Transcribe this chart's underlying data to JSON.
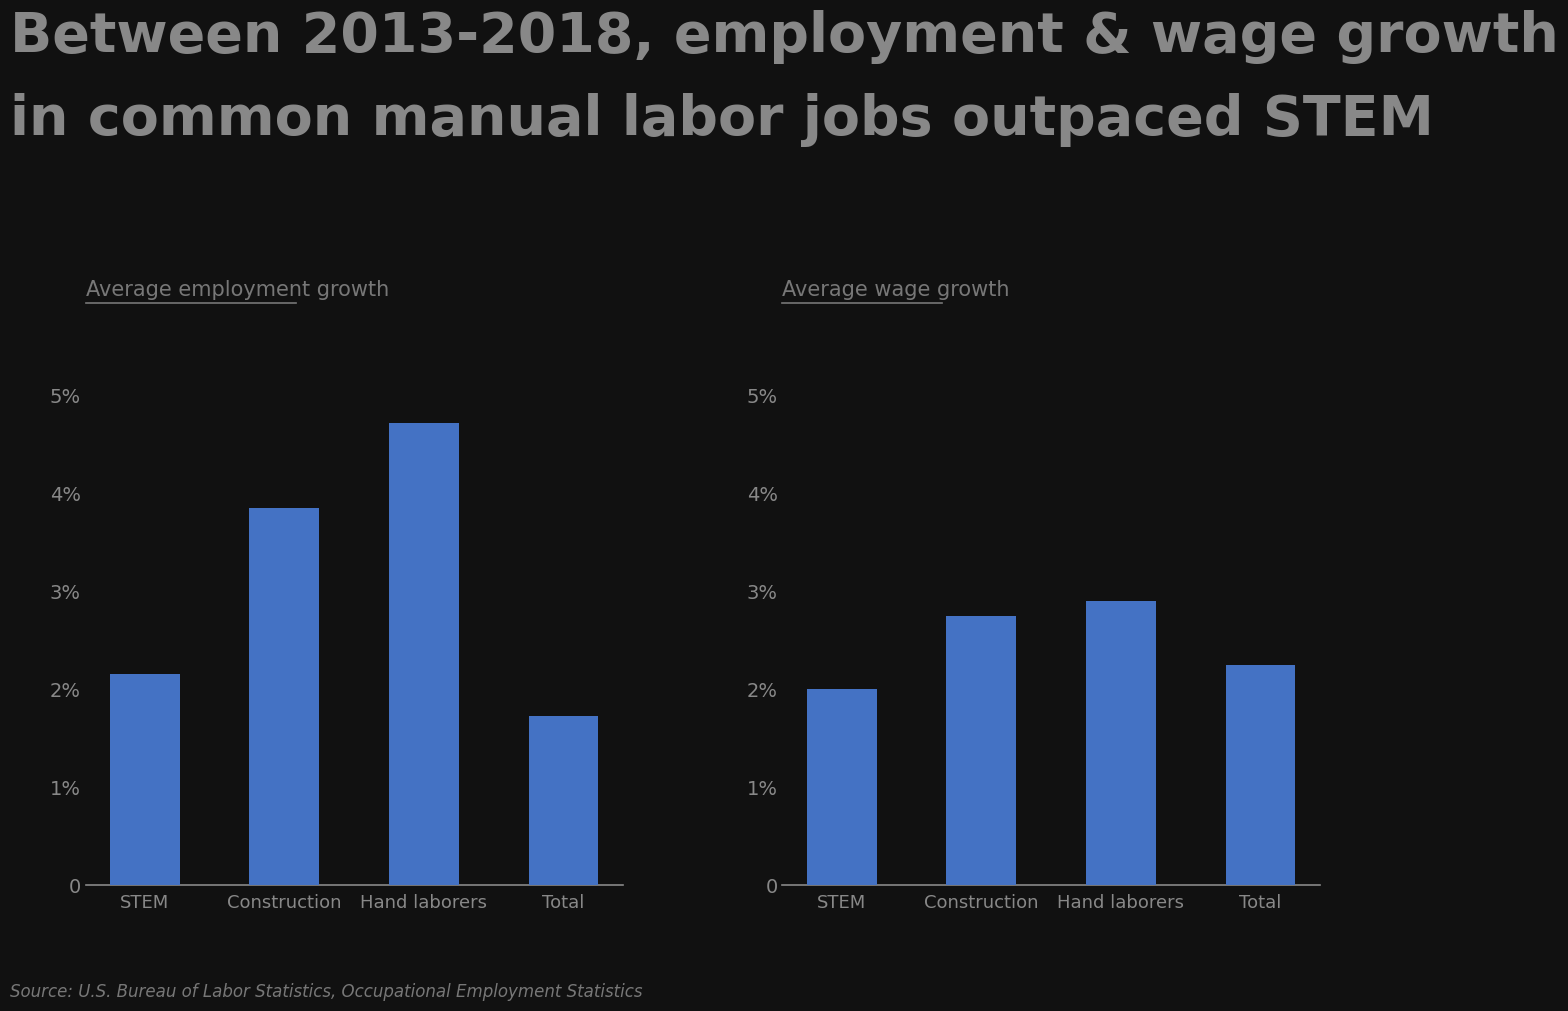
{
  "title_line1": "Between 2013-2018, employment & wage growth",
  "title_line2": "in common manual labor jobs outpaced STEM",
  "left_subtitle": "Average employment growth",
  "right_subtitle": "Average wage growth",
  "categories": [
    "STEM",
    "Construction",
    "Hand laborers",
    "Total"
  ],
  "employment_values": [
    2.15,
    3.85,
    4.72,
    1.72
  ],
  "wage_values": [
    2.0,
    2.75,
    2.9,
    2.25
  ],
  "bar_color": "#4472C4",
  "background_color": "#111111",
  "text_color": "#888888",
  "title_color": "#888888",
  "subtitle_color": "#777777",
  "source_text": "Source: U.S. Bureau of Labor Statistics, Occupational Employment Statistics",
  "ylim": [
    0,
    5.5
  ],
  "yticks": [
    0,
    1,
    2,
    3,
    4,
    5
  ],
  "ytick_labels": [
    "0",
    "1%",
    "2%",
    "3%",
    "4%",
    "5%"
  ],
  "title_fontsize": 40,
  "subtitle_fontsize": 15,
  "tick_fontsize": 14,
  "source_fontsize": 12,
  "cat_fontsize": 13
}
